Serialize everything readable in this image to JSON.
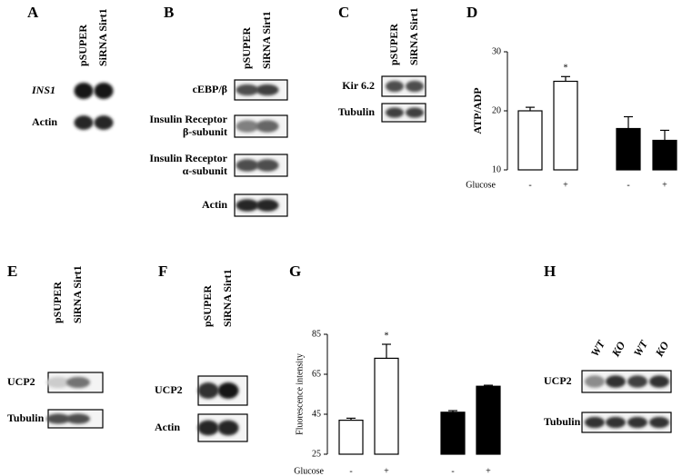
{
  "panels": [
    {
      "letter": "A",
      "lanes": [
        "pSUPER",
        "SiRNA Sirt1"
      ],
      "rows": [
        [
          "INS1"
        ],
        [
          "Actin"
        ]
      ]
    },
    {
      "letter": "B",
      "lanes": [
        "pSUPER",
        "SiRNA Sirt1"
      ],
      "rows": [
        [
          "cEBP/β"
        ],
        [
          "Insulin Receptor",
          "β-subunit"
        ],
        [
          "Insulin Receptor",
          "α-subunit"
        ],
        [
          "Actin"
        ]
      ]
    },
    {
      "letter": "C",
      "lanes": [
        "pSUPER",
        "SiRNA Sirt1"
      ],
      "rows": [
        [
          "Kir 6.2"
        ],
        [
          "Tubulin"
        ]
      ]
    },
    {
      "letter": "E",
      "lanes": [
        "pSUPER",
        "SiRNA Sirt1"
      ],
      "rows": [
        [
          "UCP2"
        ],
        [
          "Tubulin"
        ]
      ]
    },
    {
      "letter": "F",
      "lanes": [
        "pSUPER",
        "SiRNA Sirt1"
      ],
      "rows": [
        [
          "UCP2"
        ],
        [
          "Actin"
        ]
      ]
    },
    {
      "letter": "H",
      "lanes": [
        "WT",
        "KO",
        "WT",
        "KO"
      ],
      "rows": [
        [
          "UCP2"
        ],
        [
          "Tubulin"
        ]
      ]
    }
  ],
  "chart_data": [
    {
      "type": "bar",
      "panel": "D",
      "ylabel": "ATP/ADP",
      "xlabel": "Glucose",
      "categories": [
        "-",
        "+",
        "-",
        "+"
      ],
      "values": [
        20,
        25,
        17,
        15
      ],
      "errors": [
        0.6,
        0.8,
        2,
        1.7
      ],
      "colors": [
        "#ffffff",
        "#ffffff",
        "#000000",
        "#000000"
      ],
      "annotation": "*",
      "ylim": [
        10,
        30
      ],
      "yticks": [
        10,
        20,
        30
      ]
    },
    {
      "type": "bar",
      "panel": "G",
      "ylabel": "Fluorescence intensity",
      "xlabel": "Glucose",
      "categories": [
        "-",
        "+",
        "-",
        "+"
      ],
      "values": [
        42,
        73,
        46,
        59
      ],
      "errors": [
        1,
        7,
        0.8,
        0.5
      ],
      "colors": [
        "#ffffff",
        "#ffffff",
        "#000000",
        "#000000"
      ],
      "annotation": "*",
      "ylim": [
        25,
        85
      ],
      "yticks": [
        25,
        45,
        65,
        85
      ]
    }
  ]
}
